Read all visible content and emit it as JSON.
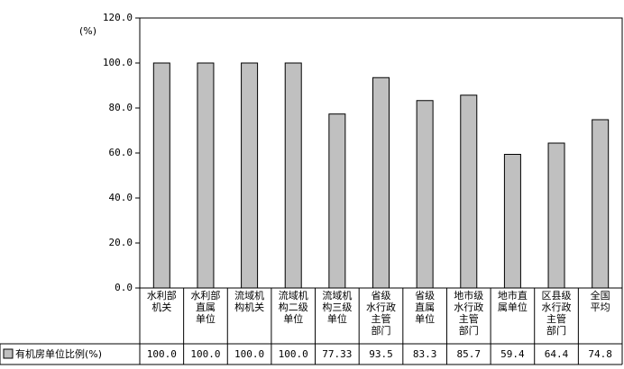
{
  "chart_data": {
    "type": "bar",
    "y_label": "(%)",
    "categories": [
      "水利部\n机关",
      "水利部\n直属\n单位",
      "流域机\n构机关",
      "流域机\n构二级\n单位",
      "流域机\n构三级\n单位",
      "省级\n水行政\n主管\n部门",
      "省级\n直属\n单位",
      "地市级\n水行政\n主管\n部门",
      "地市直\n属单位",
      "区县级\n水行政\n主管\n部门",
      "全国\n平均"
    ],
    "series": [
      {
        "name": "有机房单位比例(%)",
        "color": "#c0c0c0",
        "values": [
          100.0,
          100.0,
          100.0,
          100.0,
          77.33,
          93.5,
          83.3,
          85.7,
          59.4,
          64.4,
          74.8
        ],
        "value_labels": [
          "100.0",
          "100.0",
          "100.0",
          "100.0",
          "77.33",
          "93.5",
          "83.3",
          "85.7",
          "59.4",
          "64.4",
          "74.8"
        ]
      }
    ],
    "ylim": [
      0,
      120
    ],
    "yticks": [
      {
        "value": 0,
        "label": "0.0"
      },
      {
        "value": 20,
        "label": "20.0"
      },
      {
        "value": 40,
        "label": "40.0"
      },
      {
        "value": 60,
        "label": "60.0"
      },
      {
        "value": 80,
        "label": "80.0"
      },
      {
        "value": 100,
        "label": "100.0"
      },
      {
        "value": 120,
        "label": "120.0"
      }
    ]
  }
}
